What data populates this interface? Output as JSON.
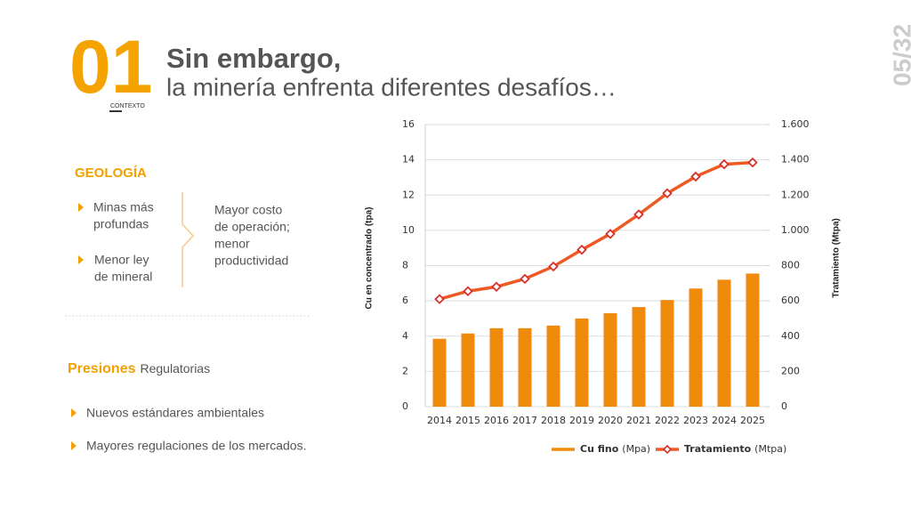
{
  "header": {
    "number": "01",
    "section": "CONTEXTO",
    "title": "Sin embargo,",
    "subtitle": "la minería enfrenta diferentes desafíos…",
    "page": "05/32"
  },
  "geology": {
    "title": "GEOLOGÍA",
    "items": [
      {
        "lines": [
          "Minas más",
          "profundas"
        ]
      },
      {
        "lines": [
          "Menor ley",
          "de mineral"
        ]
      }
    ],
    "effect": [
      "Mayor costo",
      "de operación;",
      "menor",
      "productividad"
    ]
  },
  "pressures": {
    "title": "Presiones",
    "subtitle": "Regulatorias",
    "items": [
      "Nuevos estándares ambientales",
      "Mayores regulaciones de los mercados."
    ]
  },
  "chart_data": {
    "type": "bar_line",
    "categories": [
      "2014",
      "2015",
      "2016",
      "2017",
      "2018",
      "2019",
      "2020",
      "2021",
      "2022",
      "2023",
      "2024",
      "2025"
    ],
    "ylabel": "Cu en concentrado (tpa)",
    "y2label": "Tratamiento (Mtpa)",
    "ylim": [
      0,
      16
    ],
    "yticks": [
      0,
      2,
      4,
      6,
      8,
      10,
      12,
      14,
      16
    ],
    "y2lim": [
      0,
      1600
    ],
    "y2ticks": [
      0,
      200,
      400,
      600,
      800,
      {
        "value": 1000,
        "label": "1.000"
      },
      {
        "value": 1200,
        "label": "1.200"
      },
      {
        "value": 1400,
        "label": "1.400"
      },
      {
        "value": 1600,
        "label": "1.600"
      }
    ],
    "grid": true,
    "series": [
      {
        "name": "Cu fino",
        "unit": "(Mpa)",
        "type": "bar",
        "color": "#f08a0c",
        "values": [
          3.85,
          4.15,
          4.45,
          4.45,
          4.6,
          5.0,
          5.3,
          5.65,
          6.05,
          6.7,
          7.2,
          7.55
        ]
      },
      {
        "name": "Tratamiento",
        "unit": "(Mtpa)",
        "type": "line",
        "axis": "y2",
        "color": "#ee5a24",
        "marker_color": "#d9302c",
        "values": [
          610,
          655,
          680,
          725,
          795,
          890,
          980,
          1090,
          1210,
          1305,
          1375,
          1385
        ]
      }
    ]
  }
}
